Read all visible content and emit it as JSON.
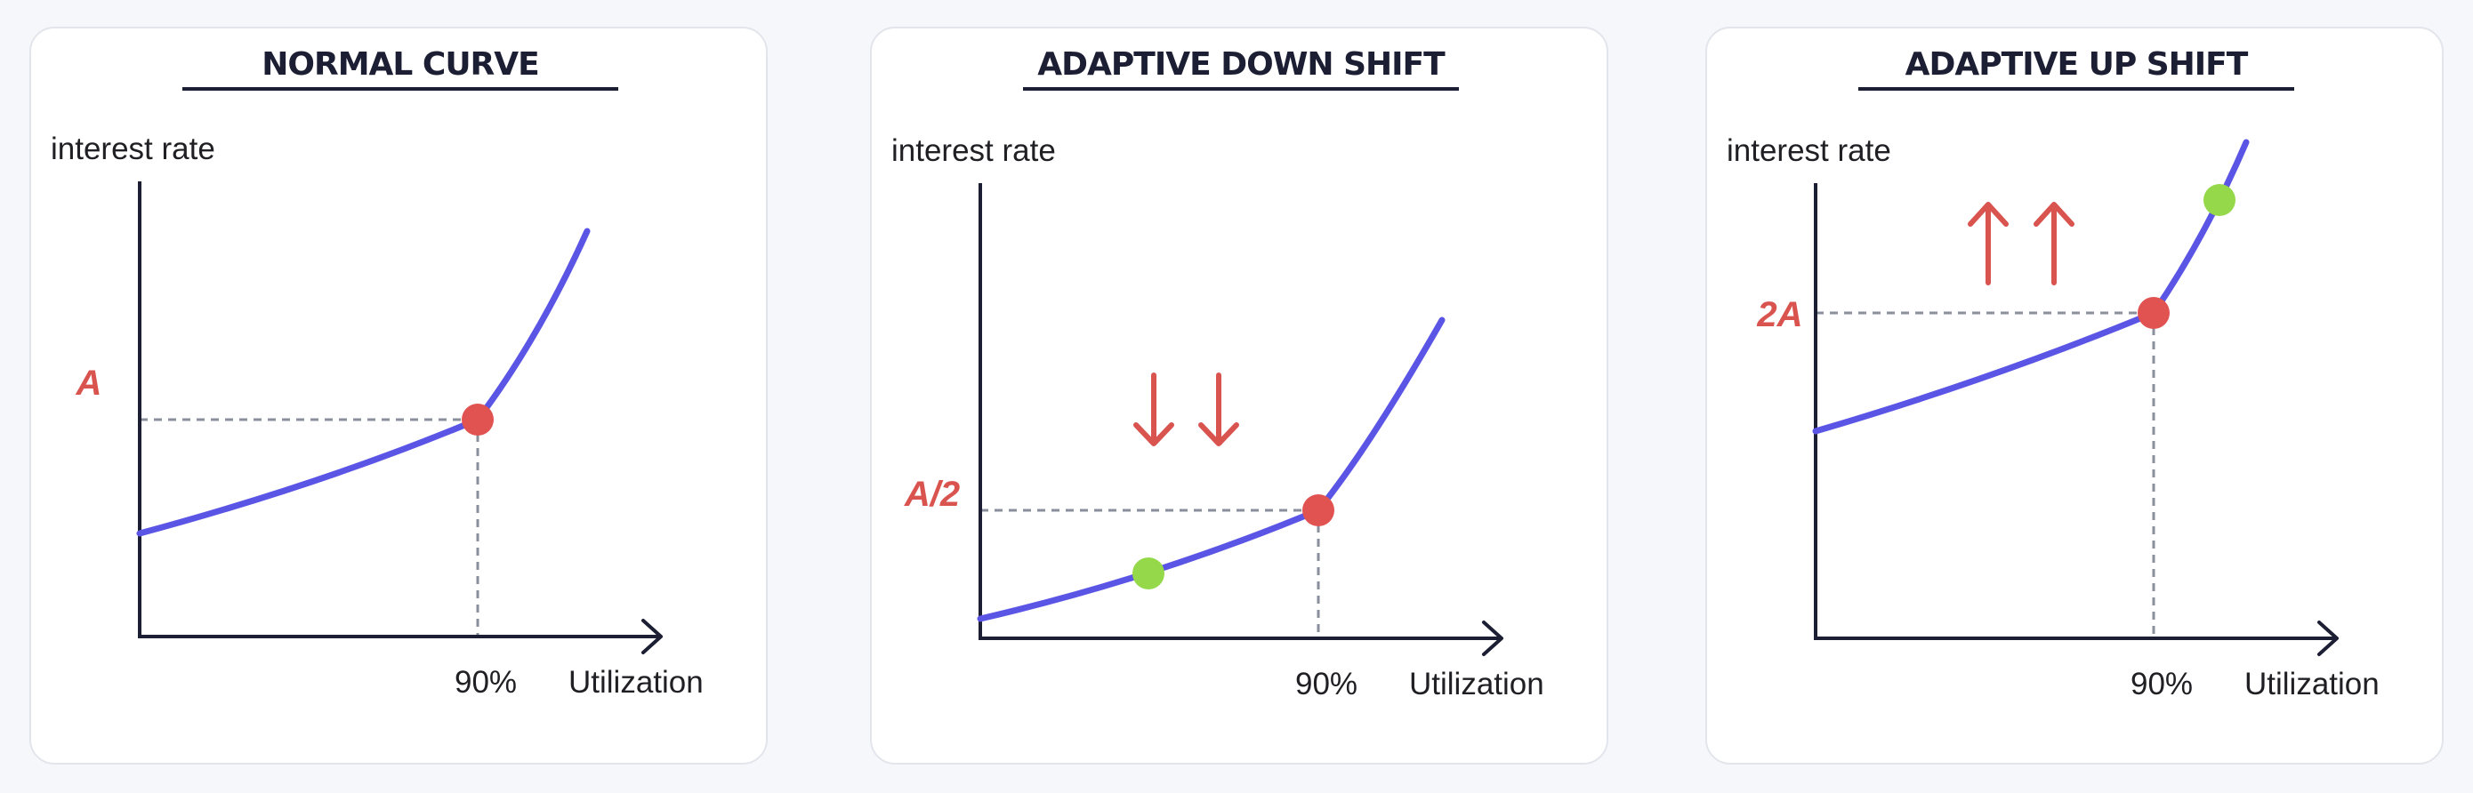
{
  "colors": {
    "curve": "#5b55e6",
    "point_red": "#e05350",
    "point_green": "#95d94a",
    "arrow": "#d9534f",
    "axis": "#1c1e33",
    "guide": "#8a8f9c"
  },
  "panels": [
    {
      "title": "NORMAL CURVE",
      "y_axis_label": "interest rate",
      "x_axis_label": "Utilization",
      "kink_label": "90%",
      "rate_label": "A",
      "arrows": "none",
      "has_green_point": false
    },
    {
      "title": "ADAPTIVE DOWN SHIFT",
      "y_axis_label": "interest rate",
      "x_axis_label": "Utilization",
      "kink_label": "90%",
      "rate_label": "A/2",
      "arrows": "down",
      "has_green_point": true
    },
    {
      "title": "ADAPTIVE UP SHIFT",
      "y_axis_label": "interest rate",
      "x_axis_label": "Utilization",
      "kink_label": "90%",
      "rate_label": "2A",
      "arrows": "up",
      "has_green_point": true
    }
  ]
}
